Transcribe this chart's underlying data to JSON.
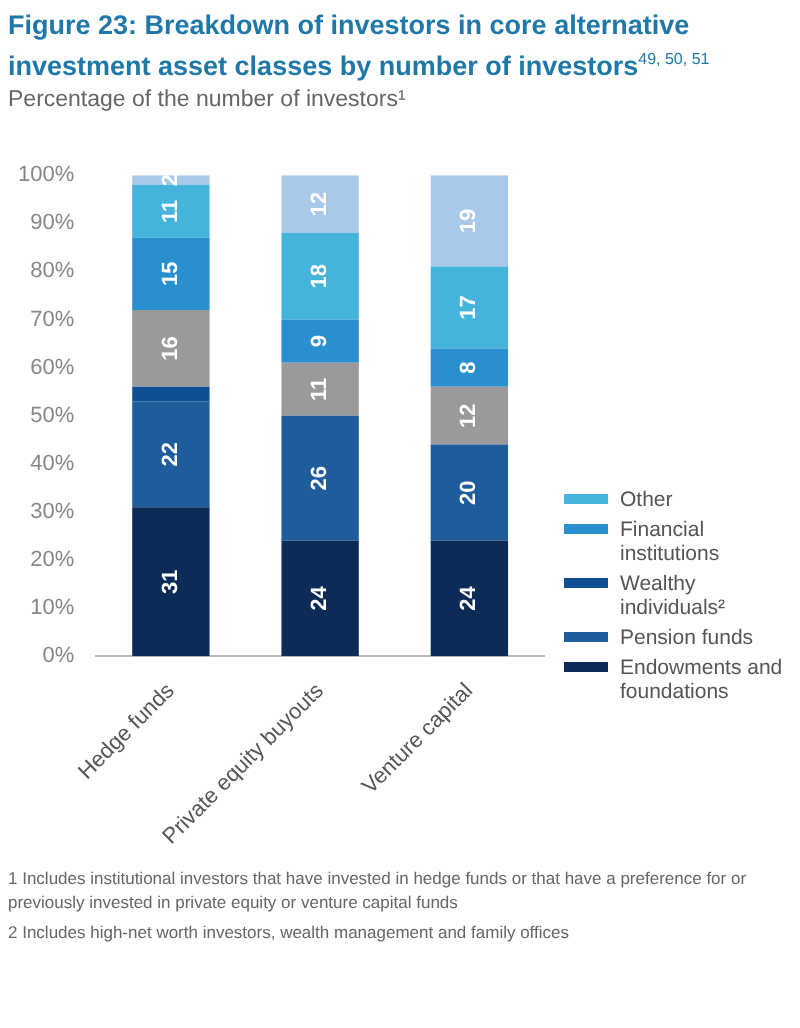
{
  "chart_data": {
    "type": "bar",
    "title": "Figure 23: Breakdown of investors in core alternative investment asset classes by number of investors$^{49, 50, 51}$",
    "subtitle": "Percentage of the number of investors¹",
    "categories": [
      "Hedge funds",
      "Private equity buyouts",
      "Venture capital"
    ],
    "stacked": true,
    "ylim": [
      0,
      100
    ],
    "yticks": [
      {
        "value": 0,
        "label": "0%"
      },
      {
        "value": 10,
        "label": "10%"
      },
      {
        "value": 20,
        "label": "20%"
      },
      {
        "value": 30,
        "label": "30%"
      },
      {
        "value": 40,
        "label": "40%"
      },
      {
        "value": 50,
        "label": "50%"
      },
      {
        "value": 60,
        "label": "60%"
      },
      {
        "value": 70,
        "label": "70%"
      },
      {
        "value": 80,
        "label": "80%"
      },
      {
        "value": 90,
        "label": "90%"
      },
      {
        "value": 100,
        "label": "100%"
      }
    ],
    "grid": false,
    "legend": "right",
    "series": [
      {
        "name": "Endowments and foundations",
        "color": "#0d2b57",
        "values": [
          31,
          24,
          24
        ],
        "value_labels": [
          "31",
          "24",
          "24"
        ]
      },
      {
        "name": "Pension funds",
        "color": "#1f5c9b",
        "values": [
          22,
          26,
          20
        ],
        "value_labels": [
          "22",
          "26",
          "20"
        ]
      },
      {
        "name": "Wealthy individuals²",
        "color": "#0e4f93",
        "values": [
          3,
          0,
          0
        ],
        "value_labels": [
          null,
          null,
          null
        ]
      },
      {
        "color": "#9a9a9c",
        "values": [
          16,
          11,
          12
        ],
        "value_labels": [
          "16",
          "11",
          "12"
        ]
      },
      {
        "name": "Financial institutions",
        "color": "#2a8fcf",
        "values": [
          15,
          9,
          8
        ],
        "value_labels": [
          "15",
          "9",
          "8"
        ]
      },
      {
        "name": "Other",
        "color": "#45b4dd",
        "values": [
          11,
          18,
          17
        ],
        "value_labels": [
          "11",
          "18",
          "17"
        ]
      },
      {
        "color": "#a9c9e8",
        "values": [
          2,
          12,
          19
        ],
        "value_labels": [
          "2",
          "12",
          "19"
        ]
      }
    ],
    "annotations": [
      "1 Includes institutional investors that have invested in hedge funds or that have a preference for or previously invested in private equity or venture capital funds",
      "2 Includes high-net worth investors, wealth management and family offices"
    ]
  }
}
